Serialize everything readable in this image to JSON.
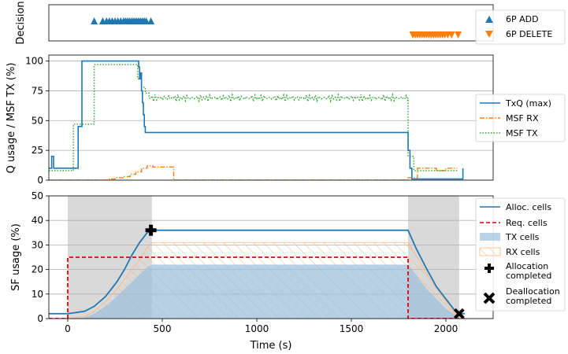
{
  "chart_data": [
    {
      "id": "decision",
      "type": "scatter",
      "ylabel": "Decision",
      "xlim": [
        -100,
        2250
      ],
      "series": [
        {
          "name": "6P ADD",
          "marker": "triangle-up",
          "color": "#1f77b4",
          "x": [
            140,
            185,
            205,
            220,
            235,
            250,
            265,
            280,
            295,
            305,
            315,
            325,
            335,
            345,
            355,
            365,
            375,
            385,
            395,
            405,
            415,
            440
          ]
        },
        {
          "name": "6P DELETE",
          "marker": "triangle-down",
          "color": "#ff7f0e",
          "x": [
            1825,
            1838,
            1850,
            1862,
            1874,
            1886,
            1898,
            1910,
            1922,
            1934,
            1946,
            1958,
            1970,
            1982,
            1994,
            2010,
            2030,
            2065
          ]
        }
      ]
    },
    {
      "id": "queue",
      "type": "line",
      "ylabel": "Q usage / MSF TX (%)",
      "xlim": [
        -100,
        2250
      ],
      "ylim": [
        0,
        105
      ],
      "yticks": [
        0,
        25,
        50,
        75,
        100
      ],
      "grid": "horizontal",
      "legend": "right",
      "series": [
        {
          "name": "TxQ (max)",
          "color": "#1f77b4",
          "style": "solid",
          "x": [
            -100,
            -85,
            -85,
            -75,
            -75,
            55,
            55,
            75,
            75,
            375,
            375,
            380,
            380,
            385,
            385,
            390,
            390,
            395,
            395,
            400,
            400,
            405,
            405,
            410,
            410,
            1800,
            1800,
            1810,
            1810,
            1820,
            1820,
            2090,
            2090
          ],
          "y": [
            10,
            10,
            20,
            20,
            10,
            10,
            45,
            45,
            100,
            100,
            95,
            95,
            85,
            85,
            90,
            90,
            75,
            75,
            65,
            65,
            55,
            55,
            45,
            45,
            40,
            40,
            25,
            25,
            10,
            10,
            1,
            1,
            10
          ],
          "spikes": {
            "base": 40,
            "top": 50,
            "start": 420,
            "end": 1800
          }
        },
        {
          "name": "MSF RX",
          "color": "#ff7f0e",
          "style": "dashdot",
          "x": [
            -100,
            220,
            220,
            250,
            250,
            300,
            300,
            330,
            330,
            360,
            360,
            390,
            390,
            420,
            420,
            450,
            450,
            560,
            560,
            1800,
            1800,
            1850,
            1850,
            1950,
            1950,
            2000,
            2000,
            2060
          ],
          "y": [
            0,
            0,
            1,
            1,
            2,
            2,
            3,
            3,
            5,
            5,
            7,
            7,
            10,
            10,
            12,
            12,
            11,
            11,
            0,
            0,
            2,
            2,
            10,
            10,
            8,
            8,
            10,
            10
          ]
        },
        {
          "name": "MSF TX",
          "color": "#2ca02c",
          "style": "dotted",
          "x": [
            -100,
            30,
            30,
            140,
            140,
            370,
            370,
            390,
            390,
            410,
            410,
            430,
            430,
            1800,
            1800,
            1830,
            1830,
            2060
          ],
          "y": [
            8,
            8,
            47,
            47,
            97,
            97,
            85,
            85,
            78,
            78,
            73,
            73,
            69,
            69,
            20,
            20,
            8,
            8
          ],
          "noise": {
            "start": 430,
            "end": 1800,
            "amplitude": 3
          }
        }
      ]
    },
    {
      "id": "sf",
      "type": "area",
      "ylabel": "SF usage (%)",
      "xlabel": "Time (s)",
      "xlim": [
        -100,
        2250
      ],
      "ylim": [
        0,
        50
      ],
      "yticks": [
        0,
        10,
        20,
        30,
        40,
        50
      ],
      "xticks": [
        0,
        500,
        1000,
        1500,
        2000
      ],
      "grid": "horizontal",
      "legend": "right",
      "shaded_regions": [
        [
          0,
          445
        ],
        [
          1800,
          2070
        ]
      ],
      "series": [
        {
          "name": "Alloc. cells",
          "color": "#1f77b4",
          "style": "solid",
          "x": [
            -100,
            0,
            90,
            140,
            200,
            260,
            300,
            340,
            380,
            420,
            445,
            1800,
            1840,
            1900,
            1950,
            2000,
            2040,
            2070,
            2100
          ],
          "y": [
            2,
            2,
            3,
            5,
            9,
            15,
            20,
            26,
            31,
            35,
            36,
            36,
            29,
            20,
            13,
            8,
            4,
            2,
            2
          ]
        },
        {
          "name": "Req. cells",
          "color": "#e8000b",
          "style": "dashed",
          "x": [
            -100,
            0,
            0,
            1800,
            1800,
            2100
          ],
          "y": [
            0,
            0,
            25,
            25,
            0,
            0
          ]
        },
        {
          "name": "TX cells",
          "color": "#9ec0dc",
          "style": "fill",
          "x": [
            -100,
            0,
            90,
            140,
            200,
            260,
            300,
            340,
            380,
            420,
            445,
            1800,
            1840,
            1900,
            1950,
            2000,
            2040,
            2070
          ],
          "y": [
            0,
            0,
            0.5,
            2,
            5,
            9,
            12,
            15,
            18,
            21,
            22,
            22,
            18,
            12,
            8,
            4,
            2,
            0
          ]
        },
        {
          "name": "RX cells",
          "color": "#ff7f0e",
          "style": "hatch",
          "x": [
            -100,
            0,
            90,
            140,
            200,
            260,
            300,
            340,
            380,
            420,
            445,
            1800,
            1840,
            1900,
            1950,
            2000,
            2040,
            2070
          ],
          "y": [
            0,
            0,
            1,
            3,
            7,
            12,
            16,
            20,
            24,
            29,
            31,
            31,
            26,
            18,
            12,
            7,
            3,
            1
          ]
        },
        {
          "name": "Allocation\ncompleted",
          "marker": "plus",
          "color": "#000000",
          "x": [
            440
          ],
          "y": [
            36
          ]
        },
        {
          "name": "Deallocation\ncompleted",
          "marker": "x",
          "color": "#000000",
          "x": [
            2070
          ],
          "y": [
            2
          ]
        }
      ]
    }
  ]
}
